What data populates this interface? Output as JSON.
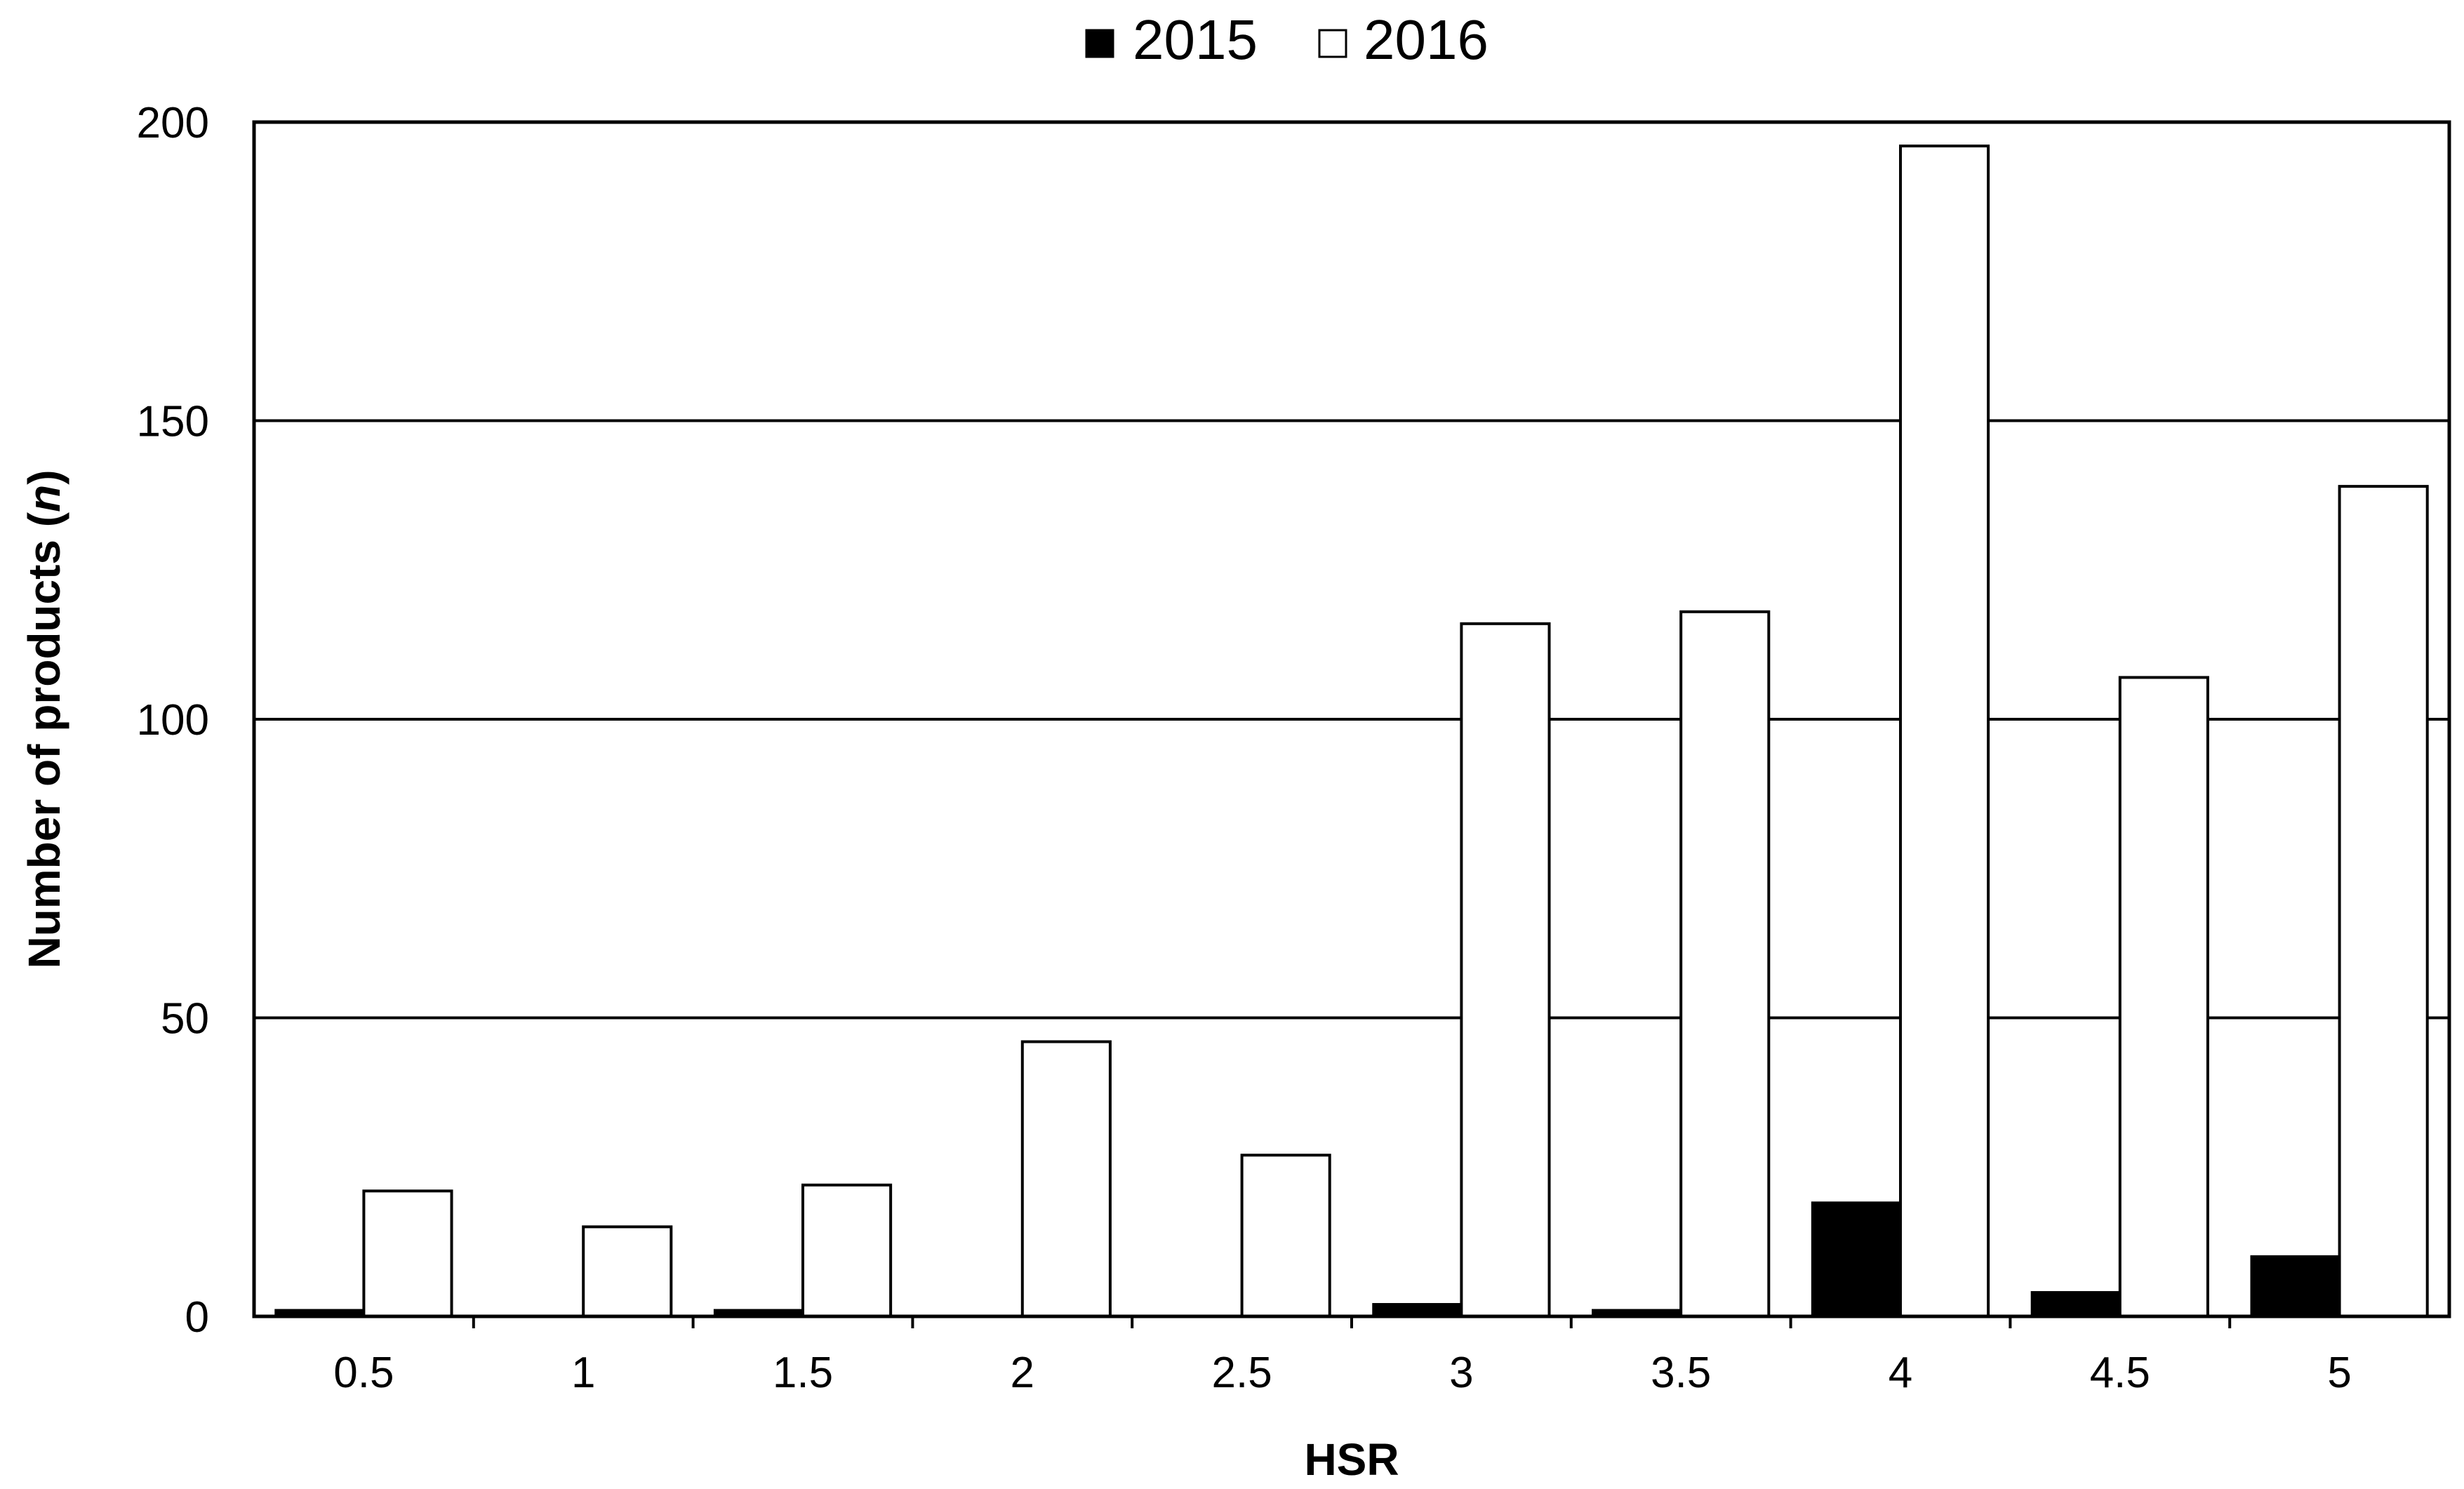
{
  "chart_data": {
    "type": "bar",
    "title": "",
    "xlabel": "HSR",
    "ylabel": "Number of products (n)",
    "ylabel_parts": [
      "Number of products (",
      "n",
      ")"
    ],
    "categories": [
      "0.5",
      "1",
      "1.5",
      "2",
      "2.5",
      "3",
      "3.5",
      "4",
      "4.5",
      "5"
    ],
    "series": [
      {
        "name": "2015",
        "color": "#000000",
        "fill": "#000000",
        "values": [
          1,
          0,
          1,
          0,
          0,
          2,
          1,
          19,
          4,
          10
        ]
      },
      {
        "name": "2016",
        "color": "#000000",
        "fill": "#ffffff",
        "values": [
          21,
          15,
          22,
          46,
          27,
          116,
          118,
          196,
          107,
          139
        ]
      }
    ],
    "ylim": [
      0,
      200
    ],
    "yticks": [
      0,
      50,
      100,
      150,
      200
    ],
    "grid": true,
    "legend_position": "top-center"
  }
}
